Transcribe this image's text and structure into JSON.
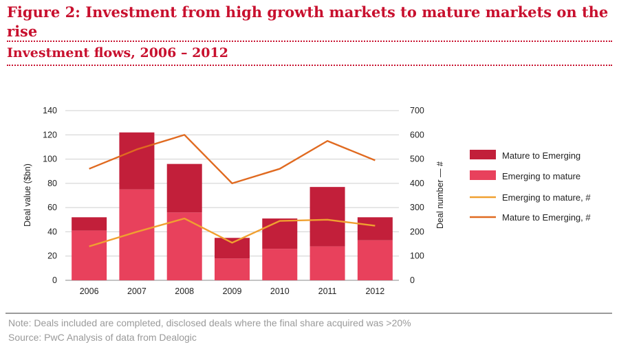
{
  "header": {
    "title": "Figure 2: Investment from high growth markets to mature markets on the rise",
    "subtitle": "Investment flows, 2006 – 2012"
  },
  "footer": {
    "note": "Note: Deals included are completed, disclosed deals where the final share acquired was >20%",
    "source": "Source: PwC Analysis of data from Dealogic"
  },
  "colors": {
    "mature_to_emerging_bar": "#c21f3a",
    "emerging_to_mature_bar": "#e8415c",
    "emerging_to_mature_line": "#f0a030",
    "mature_to_emerging_line": "#e06a20",
    "title": "#c8102e"
  },
  "chart_data": {
    "type": "bar",
    "categories": [
      "2006",
      "2007",
      "2008",
      "2009",
      "2010",
      "2011",
      "2012"
    ],
    "series": [
      {
        "name": "Emerging to mature",
        "kind": "stacked-bar",
        "axis": "left",
        "values": [
          41,
          75,
          56,
          18,
          26,
          28,
          33
        ]
      },
      {
        "name": "Mature to Emerging",
        "kind": "stacked-bar",
        "axis": "left",
        "values": [
          11,
          47,
          40,
          17,
          25,
          49,
          19
        ]
      },
      {
        "name": "Emerging to mature, #",
        "kind": "line",
        "axis": "right",
        "values": [
          140,
          200,
          255,
          155,
          245,
          250,
          225
        ]
      },
      {
        "name": "Mature to Emerging, #",
        "kind": "line",
        "axis": "right",
        "values": [
          460,
          540,
          600,
          400,
          460,
          575,
          495
        ]
      }
    ],
    "ylabel": "Deal value ($bn)",
    "y2label": "Deal number — #",
    "ylim": [
      0,
      140
    ],
    "y2lim": [
      0,
      700
    ],
    "yticks": [
      0,
      20,
      40,
      60,
      80,
      100,
      120,
      140
    ],
    "y2ticks": [
      0,
      100,
      200,
      300,
      400,
      500,
      600,
      700
    ],
    "legend": [
      "Mature to Emerging",
      "Emerging to mature",
      "Emerging to mature, #",
      "Mature to Emerging, #"
    ],
    "legend_position": "right",
    "grid": true
  }
}
